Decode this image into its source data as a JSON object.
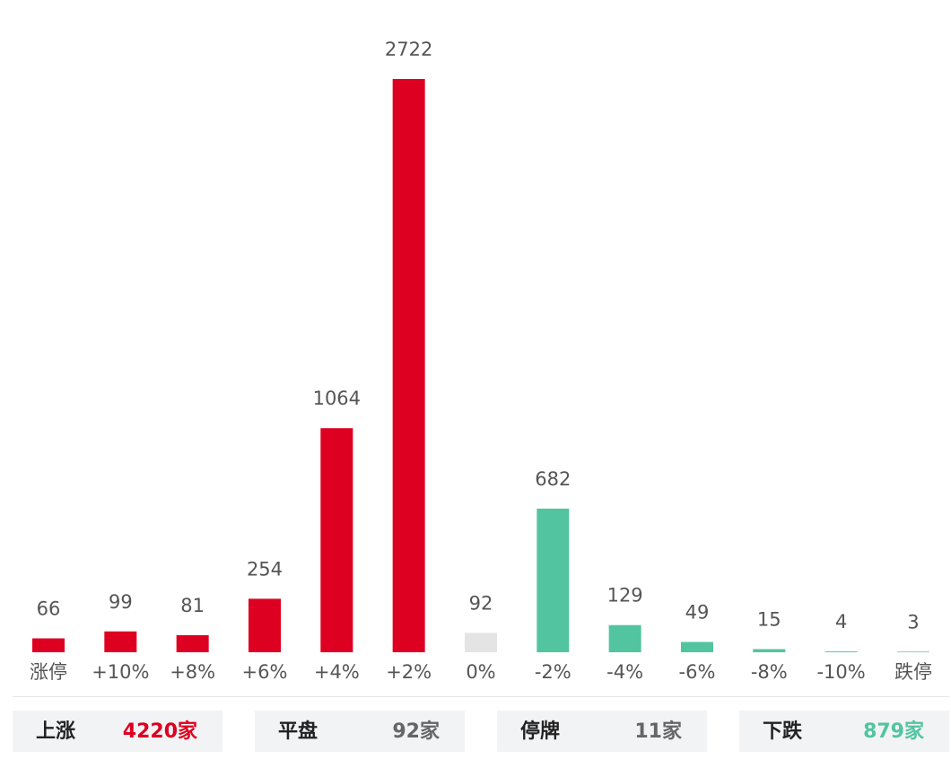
{
  "chart_data": {
    "type": "bar",
    "categories": [
      "涨停",
      "+10%",
      "+8%",
      "+6%",
      "+4%",
      "+2%",
      "0%",
      "-2%",
      "-4%",
      "-6%",
      "-8%",
      "-10%",
      "跌停"
    ],
    "values": [
      66,
      99,
      81,
      254,
      1064,
      2722,
      92,
      682,
      129,
      49,
      15,
      4,
      3
    ],
    "colors": [
      "#de0020",
      "#de0020",
      "#de0020",
      "#de0020",
      "#de0020",
      "#de0020",
      "#e4e4e4",
      "#52c4a0",
      "#52c4a0",
      "#52c4a0",
      "#52c4a0",
      "#52c4a0",
      "#52c4a0"
    ]
  },
  "summary": [
    {
      "label": "上涨",
      "value": "4220家",
      "color": "#de0020"
    },
    {
      "label": "平盘",
      "value": "92家",
      "color": "#666666"
    },
    {
      "label": "停牌",
      "value": "11家",
      "color": "#666666"
    },
    {
      "label": "下跌",
      "value": "879家",
      "color": "#52c4a0"
    }
  ]
}
